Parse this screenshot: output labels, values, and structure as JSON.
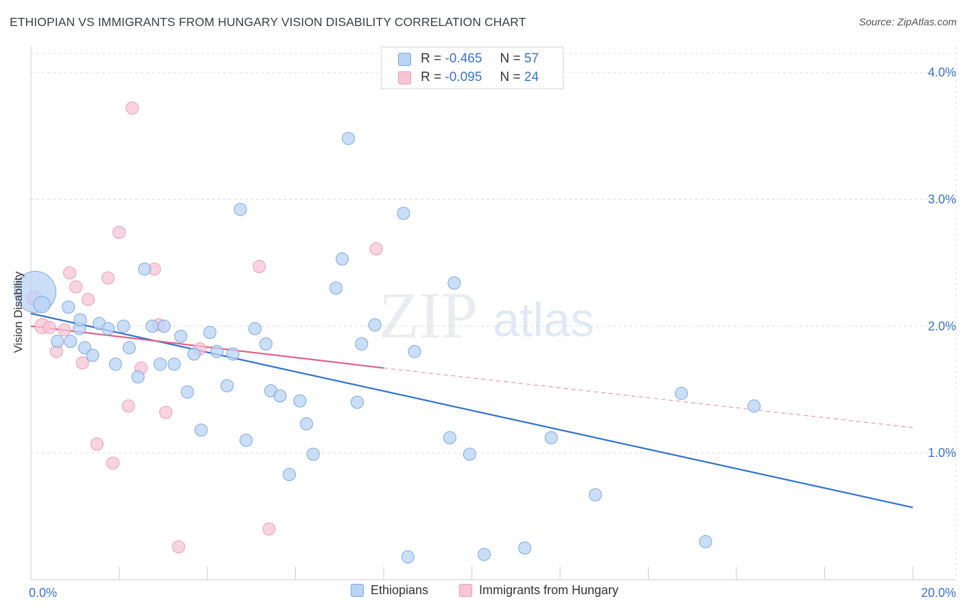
{
  "title": "ETHIOPIAN VS IMMIGRANTS FROM HUNGARY VISION DISABILITY CORRELATION CHART",
  "source": "Source: ZipAtlas.com",
  "watermark": {
    "zip": "ZIP",
    "atlas": "atlas"
  },
  "legend": {
    "r_label": "R =",
    "n_label": "N =",
    "rows": [
      {
        "r": "-0.465",
        "n": "57"
      },
      {
        "r": "-0.095",
        "n": "24"
      }
    ]
  },
  "colors": {
    "ethiopians_fill": "#b9d3f5",
    "ethiopians_stroke": "#7aa6e0",
    "ethiopians_line": "#2f6fcf",
    "hungary_fill": "#f7c5d5",
    "hungary_stroke": "#ea9ab5",
    "hungary_line": "#e0608a",
    "axis_label": "#3b73c9",
    "grid": "#dddddd"
  },
  "chart_data": {
    "type": "scatter",
    "title": "ETHIOPIAN VS IMMIGRANTS FROM HUNGARY VISION DISABILITY CORRELATION CHART",
    "xlabel": "",
    "ylabel": "Vision Disability",
    "xlim": [
      0,
      20
    ],
    "ylim": [
      0,
      4.15
    ],
    "x_tick_labels": [
      "0.0%",
      "20.0%"
    ],
    "y_ticks": [
      1,
      2,
      3,
      4
    ],
    "y_tick_labels": [
      "1.0%",
      "2.0%",
      "3.0%",
      "4.0%"
    ],
    "grid": true,
    "legend_position": "top-center",
    "series": [
      {
        "name": "Ethiopians",
        "points": [
          [
            0.1,
            2.27
          ],
          [
            0.25,
            2.17
          ],
          [
            0.85,
            2.15
          ],
          [
            1.1,
            1.98
          ],
          [
            0.6,
            1.88
          ],
          [
            0.9,
            1.88
          ],
          [
            1.12,
            2.05
          ],
          [
            1.22,
            1.83
          ],
          [
            1.4,
            1.77
          ],
          [
            1.55,
            2.02
          ],
          [
            1.75,
            1.98
          ],
          [
            1.92,
            1.7
          ],
          [
            2.1,
            2.0
          ],
          [
            2.23,
            1.83
          ],
          [
            2.43,
            1.6
          ],
          [
            2.58,
            2.45
          ],
          [
            2.75,
            2.0
          ],
          [
            2.93,
            1.7
          ],
          [
            3.02,
            2.0
          ],
          [
            3.25,
            1.7
          ],
          [
            3.4,
            1.92
          ],
          [
            3.55,
            1.48
          ],
          [
            3.7,
            1.78
          ],
          [
            3.86,
            1.18
          ],
          [
            4.06,
            1.95
          ],
          [
            4.22,
            1.8
          ],
          [
            4.45,
            1.53
          ],
          [
            4.58,
            1.78
          ],
          [
            4.75,
            2.92
          ],
          [
            4.88,
            1.1
          ],
          [
            5.08,
            1.98
          ],
          [
            5.33,
            1.86
          ],
          [
            5.44,
            1.49
          ],
          [
            5.65,
            1.45
          ],
          [
            5.86,
            0.83
          ],
          [
            6.1,
            1.41
          ],
          [
            6.25,
            1.23
          ],
          [
            6.4,
            0.99
          ],
          [
            6.92,
            2.3
          ],
          [
            7.06,
            2.53
          ],
          [
            7.2,
            3.48
          ],
          [
            7.4,
            1.4
          ],
          [
            7.5,
            1.86
          ],
          [
            7.8,
            2.01
          ],
          [
            8.55,
            0.18
          ],
          [
            8.45,
            2.89
          ],
          [
            8.7,
            1.8
          ],
          [
            9.5,
            1.12
          ],
          [
            9.6,
            2.34
          ],
          [
            9.95,
            0.99
          ],
          [
            10.28,
            0.2
          ],
          [
            11.2,
            0.25
          ],
          [
            11.8,
            1.12
          ],
          [
            12.8,
            0.67
          ],
          [
            14.75,
            1.47
          ],
          [
            15.3,
            0.3
          ],
          [
            16.4,
            1.37
          ]
        ],
        "sizes": [
          30,
          12,
          9,
          9,
          9,
          9,
          9,
          9,
          9,
          9,
          9,
          9,
          9,
          9,
          9,
          9,
          9,
          9,
          9,
          9,
          9,
          9,
          9,
          9,
          9,
          9,
          9,
          9,
          9,
          9,
          9,
          9,
          9,
          9,
          9,
          9,
          9,
          9,
          9,
          9,
          9,
          9,
          9,
          9,
          9,
          9,
          9,
          9,
          9,
          9,
          9,
          9,
          9,
          9,
          9,
          9,
          9
        ],
        "trend": {
          "x": [
            0,
            20
          ],
          "y": [
            2.1,
            0.57
          ]
        }
      },
      {
        "name": "Immigrants from Hungary",
        "points": [
          [
            0.08,
            2.22
          ],
          [
            0.26,
            2.0
          ],
          [
            0.42,
            1.99
          ],
          [
            0.58,
            1.8
          ],
          [
            0.76,
            1.97
          ],
          [
            0.88,
            2.42
          ],
          [
            1.02,
            2.31
          ],
          [
            1.17,
            1.71
          ],
          [
            1.3,
            2.21
          ],
          [
            1.5,
            1.07
          ],
          [
            1.75,
            2.38
          ],
          [
            1.86,
            0.92
          ],
          [
            2.0,
            2.74
          ],
          [
            2.21,
            1.37
          ],
          [
            2.3,
            3.72
          ],
          [
            2.5,
            1.67
          ],
          [
            2.8,
            2.45
          ],
          [
            2.9,
            2.01
          ],
          [
            3.06,
            1.32
          ],
          [
            3.35,
            0.26
          ],
          [
            3.83,
            1.82
          ],
          [
            5.18,
            2.47
          ],
          [
            5.4,
            0.4
          ],
          [
            7.83,
            2.61
          ]
        ],
        "sizes": [
          11,
          11,
          9,
          9,
          9,
          9,
          9,
          9,
          9,
          9,
          9,
          9,
          9,
          9,
          9,
          9,
          9,
          9,
          9,
          9,
          9,
          9,
          9,
          9
        ],
        "trend": {
          "x": [
            0,
            8
          ],
          "y": [
            2.0,
            1.67
          ]
        },
        "trend_extension": {
          "x": [
            8,
            20
          ],
          "y": [
            1.67,
            1.2
          ]
        }
      }
    ]
  }
}
